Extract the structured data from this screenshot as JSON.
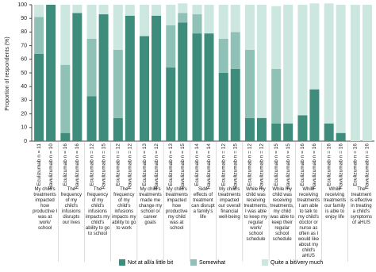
{
  "chart_data": {
    "type": "stacked-bar",
    "y_label": "Proportion of respondents (%)",
    "ylim": [
      0,
      100
    ],
    "yticks": [
      0,
      10,
      20,
      30,
      40,
      50,
      60,
      70,
      80,
      90,
      100
    ],
    "groups": [
      "My child's treatments impacted how productive I was at work/ school",
      "The frequency of my child's infusions disrupts our lives",
      "The frequency of my child's infusions impacts my child's ability to go to school",
      "The frequency of my child's infusions impacts my ability to go to work",
      "My child's treatments made me change my school or career goals",
      "My child's treatments impacted how productive my child was at school",
      "Side effects of treatment can disrupt a family's life",
      "My child's treatments impacted our overall financial well-being",
      "While my child was receiving treatments, I was able to keep my regular work/ school schedule",
      "While my child was receiving treatments, my child was able to keep their regular school schedule",
      "While receiving treatments I am able to talk to my child's doctor or nurse as often as I would like about my child's aHUS",
      "While receiving treatments our family is able to enjoy life",
      "The treatment is effective in treating a child's symptoms of aHUS"
    ],
    "categories": [
      "Eculizumab n = 11",
      "Ravulizumab n = 10",
      "Eculizumab n = 16",
      "Ravulizumab n = 16",
      "Eculizumab n = 12",
      "Ravulizumab n = 15",
      "Eculizumab n = 12",
      "Ravulizumab n = 12",
      "Eculizumab n = 13",
      "Ravulizumab n = 12",
      "Eculizumab n = 13",
      "Ravulizumab n = 15",
      "Eculizumab n = 14",
      "Ravulizumab n = 14",
      "Eculizumab n = 12",
      "Ravulizumab n = 15",
      "Eculizumab n = 12",
      "Ravulizumab n = 12",
      "Eculizumab n = 15",
      "Ravulizumab n = 15",
      "Eculizumab n = 16",
      "Ravulizumab n = 16",
      "Eculizumab n = 16",
      "Ravulizumab n = 16",
      "Eculizumab n = 16",
      "Ravulizumab n = 16"
    ],
    "series": [
      {
        "name": "Not at all/a little bit",
        "color": "#3d8c7c",
        "values": [
          64,
          100,
          6,
          94,
          33,
          93,
          17,
          92,
          77,
          92,
          54,
          87,
          79,
          79,
          50,
          53,
          17,
          17,
          13,
          13,
          19,
          38,
          13,
          6,
          0,
          0
        ]
      },
      {
        "name": "Somewhat",
        "color": "#8fc1b6",
        "values": [
          27,
          0,
          50,
          0,
          42,
          0,
          50,
          0,
          0,
          0,
          31,
          7,
          14,
          0,
          25,
          27,
          50,
          0,
          40,
          0,
          0,
          0,
          0,
          0,
          0,
          0
        ]
      },
      {
        "name": "Quite a bit/very much",
        "color": "#cbe7e0",
        "values": [
          9,
          0,
          44,
          6,
          25,
          7,
          33,
          8,
          23,
          8,
          15,
          7,
          7,
          21,
          25,
          20,
          33,
          83,
          46,
          87,
          81,
          63,
          88,
          94,
          100,
          100
        ]
      }
    ]
  }
}
